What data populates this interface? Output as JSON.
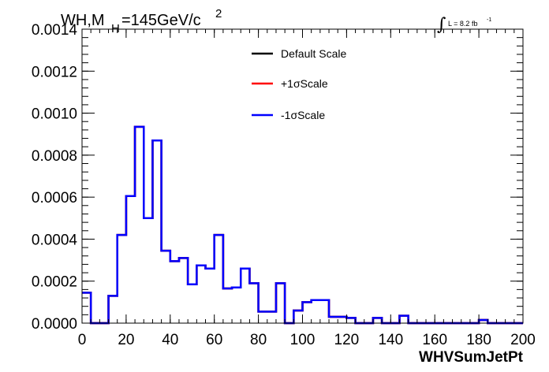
{
  "chart_data": {
    "type": "histogram",
    "title": {
      "main": "WH,M",
      "sub": "H",
      "rest": "=145GeV/c",
      "sup": "2"
    },
    "lumi": {
      "integral": "∫",
      "text": "L = 8.2 fb",
      "sup": "-1"
    },
    "xlabel": "WHVSumJetPt",
    "ylabel": "",
    "xlim": [
      0,
      200
    ],
    "ylim": [
      0,
      0.0014
    ],
    "x_ticks": [
      "0",
      "20",
      "40",
      "60",
      "80",
      "100",
      "120",
      "140",
      "160",
      "180",
      "200"
    ],
    "y_ticks": [
      "0.0000",
      "0.0002",
      "0.0004",
      "0.0006",
      "0.0008",
      "0.0010",
      "0.0012",
      "0.0014"
    ],
    "legend_position": "top-center",
    "bin_width": 4,
    "bin_edges_start": 0,
    "series": [
      {
        "name": "Default Scale",
        "color": "#000000",
        "values": [
          0.000145,
          0.0,
          0.0,
          0.00013,
          0.00042,
          0.000605,
          0.000935,
          0.0005,
          0.00087,
          0.000345,
          0.000295,
          0.00031,
          0.000185,
          0.000275,
          0.00026,
          0.00042,
          0.000165,
          0.00017,
          0.00026,
          0.00019,
          5.5e-05,
          5.5e-05,
          0.00019,
          0.0,
          6e-05,
          0.0001,
          0.00011,
          0.00011,
          3e-05,
          3e-05,
          2.5e-05,
          0.0,
          0.0,
          2.5e-05,
          0.0,
          0.0,
          3.5e-05,
          0.0,
          0.0,
          0.0,
          0.0,
          0.0,
          0.0,
          0.0,
          0.0,
          1.5e-05,
          0.0,
          0.0,
          0.0,
          0.0
        ]
      },
      {
        "name": "+1σScale",
        "color": "#ff0000",
        "values": [
          0.000145,
          0.0,
          0.0,
          0.00013,
          0.00042,
          0.000605,
          0.000935,
          0.0005,
          0.00087,
          0.000345,
          0.000295,
          0.00031,
          0.000185,
          0.000275,
          0.00026,
          0.00042,
          0.000165,
          0.00017,
          0.00026,
          0.00019,
          5.5e-05,
          5.5e-05,
          0.00019,
          0.0,
          6e-05,
          0.0001,
          0.00011,
          0.00011,
          3e-05,
          3e-05,
          2.5e-05,
          0.0,
          0.0,
          2.5e-05,
          0.0,
          0.0,
          3.5e-05,
          0.0,
          0.0,
          0.0,
          0.0,
          0.0,
          0.0,
          0.0,
          0.0,
          1.5e-05,
          0.0,
          0.0,
          0.0,
          0.0
        ]
      },
      {
        "name": "-1σScale",
        "color": "#0000ff",
        "values": [
          0.000145,
          0.0,
          0.0,
          0.00013,
          0.00042,
          0.000605,
          0.000935,
          0.0005,
          0.00087,
          0.000345,
          0.000295,
          0.00031,
          0.000185,
          0.000275,
          0.00026,
          0.00042,
          0.000165,
          0.00017,
          0.00026,
          0.00019,
          5.5e-05,
          5.5e-05,
          0.00019,
          0.0,
          6e-05,
          0.0001,
          0.00011,
          0.00011,
          3e-05,
          3e-05,
          2.5e-05,
          0.0,
          0.0,
          2.5e-05,
          0.0,
          0.0,
          3.5e-05,
          0.0,
          0.0,
          0.0,
          0.0,
          0.0,
          0.0,
          0.0,
          0.0,
          1.5e-05,
          0.0,
          0.0,
          0.0,
          0.0
        ]
      }
    ]
  }
}
